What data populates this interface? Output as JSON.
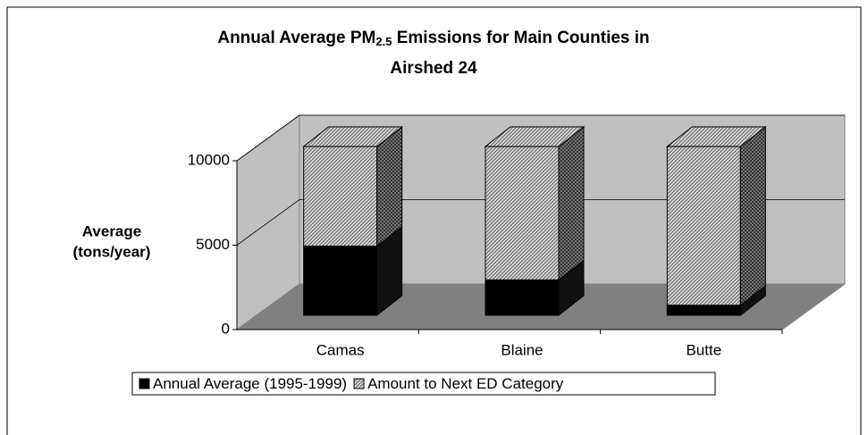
{
  "chart_data": {
    "type": "bar3d_stacked",
    "title": {
      "prefix": "Annual Average PM",
      "subscript": "2.5",
      "suffix": " Emissions for  Main  Counties in",
      "line2": "Airshed 24"
    },
    "y_label": [
      "Average",
      "(tons/year)"
    ],
    "categories": [
      "Camas",
      "Blaine",
      "Butte"
    ],
    "series": [
      {
        "name": "Annual Average (1995-1999)",
        "color": "#000000",
        "values": [
          4100,
          2100,
          600
        ]
      },
      {
        "name": "Amount to Next ED Category",
        "color": "#c8c8c8",
        "values": [
          5900,
          7900,
          9400
        ]
      }
    ],
    "ylim": [
      0,
      10000
    ],
    "yticks": [
      0,
      5000,
      10000
    ],
    "grid": true,
    "legend": "bottom"
  }
}
